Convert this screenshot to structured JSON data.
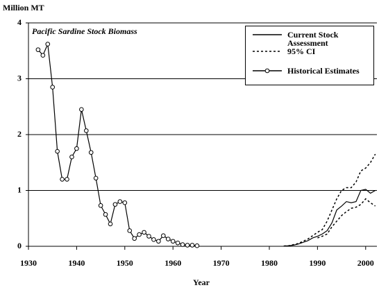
{
  "chart_data": {
    "type": "line",
    "y_axis_label": "Million MT",
    "x_axis_label": "Year",
    "annotation": "Pacific Sardine Stock Biomass",
    "xlim": [
      1930,
      2003
    ],
    "xticks": [
      1930,
      1940,
      1950,
      1960,
      1970,
      1980,
      1990,
      2000
    ],
    "ylim": [
      0,
      4
    ],
    "yticks": [
      0,
      1,
      2,
      3,
      4
    ],
    "grid": true,
    "series": [
      {
        "name": "Current Stock Assessment",
        "color": "#000000",
        "dash": false,
        "marker": false,
        "x": [
          1983,
          1984,
          1985,
          1986,
          1987,
          1988,
          1989,
          1990,
          1991,
          1992,
          1993,
          1994,
          1995,
          1996,
          1997,
          1998,
          1999,
          2000,
          2001,
          2002
        ],
        "values": [
          0.005,
          0.01,
          0.02,
          0.04,
          0.07,
          0.1,
          0.15,
          0.18,
          0.22,
          0.28,
          0.42,
          0.65,
          0.72,
          0.8,
          0.78,
          0.8,
          1.0,
          1.02,
          0.95,
          1.0
        ]
      },
      {
        "name": "95% CI",
        "color": "#000000",
        "dash": true,
        "marker": false,
        "x": [
          1983,
          1984,
          1985,
          1986,
          1987,
          1988,
          1989,
          1990,
          1991,
          1992,
          1993,
          1994,
          1995,
          1996,
          1997,
          1998,
          1999,
          2000,
          2001,
          2002
        ],
        "values": [
          0.005,
          0.01,
          0.03,
          0.05,
          0.09,
          0.13,
          0.19,
          0.25,
          0.3,
          0.45,
          0.65,
          0.85,
          1.0,
          1.05,
          1.05,
          1.15,
          1.35,
          1.4,
          1.5,
          1.65
        ]
      },
      {
        "name": null,
        "color": "#000000",
        "dash": true,
        "marker": false,
        "x": [
          1990,
          1991,
          1992,
          1993,
          1994,
          1995,
          1996,
          1997,
          1998,
          1999,
          2000,
          2001,
          2002
        ],
        "values": [
          0.15,
          0.18,
          0.22,
          0.35,
          0.45,
          0.55,
          0.62,
          0.68,
          0.7,
          0.75,
          0.85,
          0.78,
          0.72
        ]
      },
      {
        "name": "Historical Estimates",
        "color": "#000000",
        "dash": false,
        "marker": true,
        "x": [
          1932,
          1933,
          1934,
          1935,
          1936,
          1937,
          1938,
          1939,
          1940,
          1941,
          1942,
          1943,
          1944,
          1945,
          1946,
          1947,
          1948,
          1949,
          1950,
          1951,
          1952,
          1953,
          1954,
          1955,
          1956,
          1957,
          1958,
          1959,
          1960,
          1961,
          1962,
          1963,
          1964,
          1965
        ],
        "values": [
          3.52,
          3.42,
          3.62,
          2.85,
          1.7,
          1.2,
          1.2,
          1.6,
          1.75,
          2.45,
          2.07,
          1.68,
          1.22,
          0.73,
          0.57,
          0.4,
          0.75,
          0.8,
          0.78,
          0.28,
          0.14,
          0.21,
          0.25,
          0.18,
          0.12,
          0.09,
          0.19,
          0.13,
          0.09,
          0.06,
          0.03,
          0.02,
          0.02,
          0.01
        ]
      }
    ]
  }
}
